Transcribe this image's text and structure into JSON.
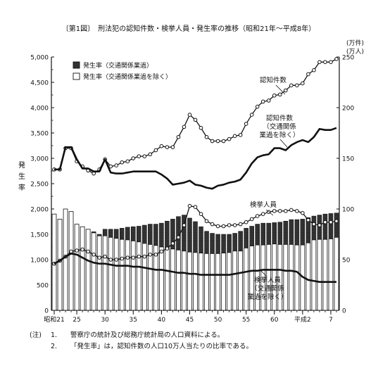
{
  "chart_data": {
    "type": "bar",
    "title": "〔第1図〕　刑法犯の認知件数・検挙人員・発生率の推移（昭和21年〜平成8年）",
    "left_axis": {
      "label_chars": [
        "発",
        "生",
        "率"
      ],
      "ylim": [
        0,
        5000
      ],
      "ticks": [
        "0",
        "500",
        "1,000",
        "1,500",
        "2,000",
        "2,500",
        "3,000",
        "3,500",
        "4,000",
        "4,500",
        "5,000"
      ]
    },
    "right_axis": {
      "unit_line1": "(万件)",
      "unit_line2": "(万人)",
      "ylim": [
        0,
        250
      ],
      "ticks": [
        "0",
        "50",
        "100",
        "150",
        "200",
        "250"
      ]
    },
    "x_ticks": [
      {
        "year": 1946,
        "label": "昭和21"
      },
      {
        "year": 1950,
        "label": "25"
      },
      {
        "year": 1955,
        "label": "30"
      },
      {
        "year": 1960,
        "label": "35"
      },
      {
        "year": 1965,
        "label": "40"
      },
      {
        "year": 1970,
        "label": "45"
      },
      {
        "year": 1975,
        "label": "50"
      },
      {
        "year": 1980,
        "label": "55"
      },
      {
        "year": 1985,
        "label": "60"
      },
      {
        "year": 1990,
        "label": "平成2"
      },
      {
        "year": 1995,
        "label": "7"
      }
    ],
    "years": [
      1946,
      1947,
      1948,
      1949,
      1950,
      1951,
      1952,
      1953,
      1954,
      1955,
      1956,
      1957,
      1958,
      1959,
      1960,
      1961,
      1962,
      1963,
      1964,
      1965,
      1966,
      1967,
      1968,
      1969,
      1970,
      1971,
      1972,
      1973,
      1974,
      1975,
      1976,
      1977,
      1978,
      1979,
      1980,
      1981,
      1982,
      1983,
      1984,
      1985,
      1986,
      1987,
      1988,
      1989,
      1990,
      1991,
      1992,
      1993,
      1994,
      1995,
      1996
    ],
    "series": [
      {
        "name": "発生率（交通関係業過）",
        "kind": "bar",
        "axis": "left",
        "values": [
          1900,
          1800,
          2000,
          1950,
          1700,
          1650,
          1600,
          1550,
          1500,
          1600,
          1600,
          1600,
          1620,
          1640,
          1650,
          1660,
          1680,
          1700,
          1700,
          1720,
          1760,
          1800,
          1850,
          1880,
          1820,
          1750,
          1650,
          1560,
          1520,
          1500,
          1500,
          1500,
          1520,
          1560,
          1620,
          1660,
          1700,
          1720,
          1720,
          1730,
          1740,
          1760,
          1790,
          1790,
          1800,
          1830,
          1860,
          1880,
          1900,
          1910,
          1920
        ]
      },
      {
        "name": "発生率（交通関係業過を除く）",
        "kind": "bar",
        "axis": "left",
        "values": [
          1900,
          1800,
          2000,
          1950,
          1700,
          1650,
          1600,
          1530,
          1470,
          1470,
          1440,
          1420,
          1400,
          1390,
          1370,
          1350,
          1320,
          1300,
          1280,
          1250,
          1230,
          1210,
          1190,
          1170,
          1150,
          1140,
          1130,
          1120,
          1120,
          1120,
          1130,
          1140,
          1170,
          1170,
          1230,
          1270,
          1290,
          1290,
          1300,
          1310,
          1300,
          1300,
          1300,
          1290,
          1290,
          1330,
          1390,
          1400,
          1400,
          1410,
          1440
        ]
      },
      {
        "name": "認知件数",
        "kind": "line",
        "axis": "right",
        "values": [
          139,
          139,
          160,
          160,
          147,
          142,
          138,
          135,
          139,
          149,
          142,
          143,
          146,
          147,
          150,
          152,
          152,
          154,
          158,
          162,
          161,
          161,
          171,
          181,
          193,
          188,
          180,
          171,
          167,
          167,
          167,
          169,
          172,
          173,
          184,
          193,
          201,
          206,
          207,
          212,
          213,
          217,
          222,
          222,
          224,
          233,
          237,
          245,
          245,
          245,
          248
        ]
      },
      {
        "name": "認知件数（交通関係業過を除く）",
        "kind": "line",
        "axis": "right",
        "values": [
          139,
          139,
          161,
          161,
          149,
          140,
          140,
          137,
          137,
          149,
          136,
          135,
          135,
          136,
          137,
          137,
          137,
          137,
          137,
          134,
          130,
          124,
          125,
          126,
          128,
          124,
          123,
          121,
          120,
          123,
          124,
          126,
          127,
          129,
          136,
          145,
          151,
          153,
          154,
          160,
          160,
          158,
          163,
          166,
          168,
          166,
          171,
          179,
          178,
          178,
          180
        ]
      },
      {
        "name": "検挙人員",
        "kind": "line",
        "axis": "right",
        "values": [
          46,
          49,
          53,
          58,
          59,
          60,
          58,
          55,
          52,
          53,
          50,
          50,
          51,
          52,
          52,
          53,
          53,
          55,
          55,
          58,
          61,
          66,
          72,
          84,
          103,
          102,
          95,
          88,
          85,
          83,
          83,
          84,
          84,
          85,
          87,
          90,
          93,
          95,
          97,
          98,
          98,
          98,
          99,
          98,
          96,
          89,
          85,
          84,
          87,
          87,
          88
        ]
      },
      {
        "name": "検挙人員（交通関係業過を除く）",
        "kind": "line",
        "axis": "right",
        "values": [
          46,
          49,
          53,
          56,
          55,
          52,
          49,
          47,
          46,
          46,
          45,
          44,
          44,
          44,
          43,
          43,
          42,
          41,
          40,
          40,
          39,
          38,
          37,
          37,
          36,
          36,
          35,
          35,
          35,
          35,
          35,
          35,
          36,
          37,
          38,
          39,
          39,
          40,
          40,
          40,
          40,
          39,
          39,
          38,
          33,
          30,
          29,
          28,
          28,
          28,
          28
        ]
      }
    ],
    "legend": [
      {
        "swatch": "hatched",
        "text": "発生率（交通関係業過）"
      },
      {
        "swatch": "white",
        "text": "発生率（交通関係業過を除く）"
      }
    ],
    "legend_position": "top-left",
    "annotations": {
      "recognized": "認知件数",
      "recognized_excl": [
        "認知件数",
        "（交通関係",
        "業過を除く）"
      ],
      "arrested": "検挙人員",
      "arrested_excl": [
        "検挙人員",
        "（交通関係",
        "業過を除く）"
      ]
    }
  },
  "notes": [
    {
      "label": "(注)",
      "num": "1.",
      "text": "警察庁の統計及び総務庁統計局の人口資料による。"
    },
    {
      "label": "",
      "num": "2.",
      "text": "「発生率」は，認知件数の人口10万人当たりの比率である。"
    }
  ]
}
